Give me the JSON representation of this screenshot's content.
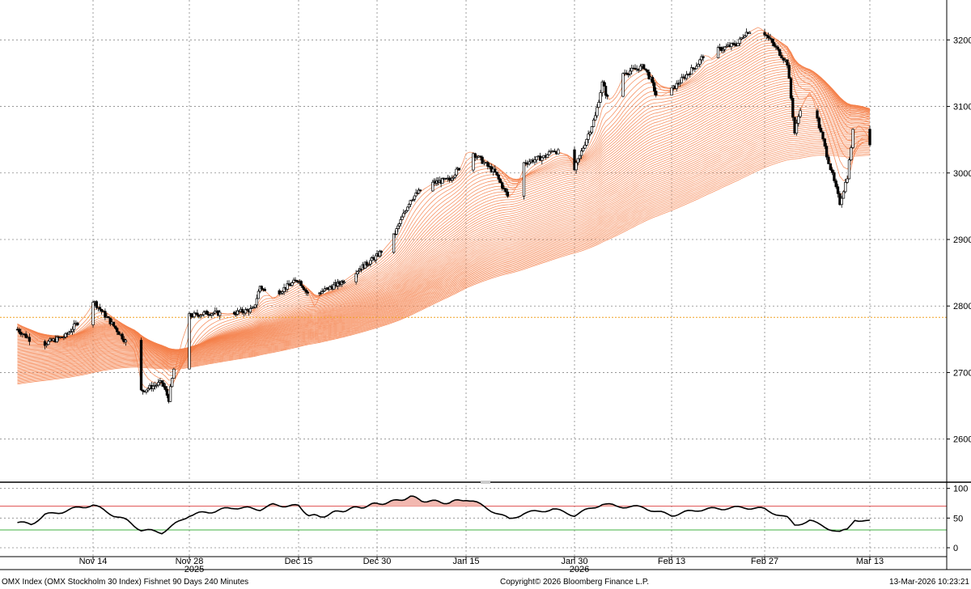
{
  "footer": {
    "left": "OMX Index (OMX Stockholm 30 Index) Fishnet 90 Days 240 Minutes",
    "center": "Copyright© 2026 Bloomberg Finance L.P.",
    "right": "13-Mar-2026 10:23:21"
  },
  "colors": {
    "candle": "#000000",
    "fishnet": "#f4804a",
    "reference_line": "#f0a020",
    "rsi_line": "#000000",
    "rsi_upper": "#e05050",
    "rsi_lower": "#40b040",
    "rsi_fill": "#f2b8b0",
    "grid": "#888888"
  },
  "chart_data": [
    {
      "type": "line",
      "subtype": "candlestick-with-fishnet-moving-averages",
      "title": "",
      "xlabel": "",
      "ylabel": "",
      "x_ticks": [
        "Nov 14",
        "Nov 28",
        "Dec 15",
        "Dec 30",
        "Jan 15",
        "Jan 30",
        "Feb 13",
        "Feb 27",
        "Mar 13"
      ],
      "year_labels": [
        {
          "label": "2025",
          "near": "Nov 28"
        },
        {
          "label": "2026",
          "near": "Jan 30"
        }
      ],
      "y_ticks": [
        2600,
        2700,
        2800,
        2900,
        3000,
        3100,
        3200
      ],
      "ylim": [
        2540,
        3260
      ],
      "reference_line": 2783,
      "price_path": [
        [
          "Nov 3",
          2765
        ],
        [
          "Nov 6",
          2740
        ],
        [
          "Nov 10",
          2755
        ],
        [
          "Nov 13",
          2790
        ],
        [
          "Nov 14",
          2808
        ],
        [
          "Nov 17",
          2770
        ],
        [
          "Nov 20",
          2730
        ],
        [
          "Nov 21",
          2672
        ],
        [
          "Nov 24",
          2685
        ],
        [
          "Nov 25",
          2660
        ],
        [
          "Nov 26",
          2720
        ],
        [
          "Nov 27",
          2760
        ],
        [
          "Nov 28",
          2785
        ],
        [
          "Dec 1",
          2790
        ],
        [
          "Dec 4",
          2788
        ],
        [
          "Dec 8",
          2795
        ],
        [
          "Dec 9",
          2830
        ],
        [
          "Dec 11",
          2808
        ],
        [
          "Dec 12",
          2822
        ],
        [
          "Dec 15",
          2840
        ],
        [
          "Dec 17",
          2815
        ],
        [
          "Dec 18",
          2795
        ],
        [
          "Dec 19",
          2820
        ],
        [
          "Dec 23",
          2835
        ],
        [
          "Dec 30",
          2875
        ],
        [
          "Jan 2",
          2905
        ],
        [
          "Jan 5",
          2960
        ],
        [
          "Jan 7",
          2975
        ],
        [
          "Jan 9",
          2985
        ],
        [
          "Jan 12",
          2990
        ],
        [
          "Jan 14",
          3010
        ],
        [
          "Jan 15",
          3035
        ],
        [
          "Jan 16",
          3030
        ],
        [
          "Jan 19",
          3000
        ],
        [
          "Jan 20",
          2980
        ],
        [
          "Jan 21",
          2960
        ],
        [
          "Jan 22",
          2985
        ],
        [
          "Jan 23",
          3015
        ],
        [
          "Jan 26",
          3025
        ],
        [
          "Jan 27",
          3035
        ],
        [
          "Jan 28",
          3030
        ],
        [
          "Jan 29",
          3025
        ],
        [
          "Jan 30",
          3005
        ],
        [
          "Feb 2",
          3085
        ],
        [
          "Feb 3",
          3135
        ],
        [
          "Feb 4",
          3105
        ],
        [
          "Feb 5",
          3125
        ],
        [
          "Feb 6",
          3150
        ],
        [
          "Feb 9",
          3160
        ],
        [
          "Feb 10",
          3140
        ],
        [
          "Feb 11",
          3110
        ],
        [
          "Feb 12",
          3120
        ],
        [
          "Feb 13",
          3125
        ],
        [
          "Feb 17",
          3165
        ],
        [
          "Feb 18",
          3180
        ],
        [
          "Feb 19",
          3170
        ],
        [
          "Feb 20",
          3185
        ],
        [
          "Feb 23",
          3195
        ],
        [
          "Feb 24",
          3210
        ],
        [
          "Feb 25",
          3215
        ],
        [
          "Feb 26",
          3220
        ],
        [
          "Feb 27",
          3210
        ],
        [
          "Mar 2",
          3165
        ],
        [
          "Mar 3",
          3060
        ],
        [
          "Mar 4",
          3110
        ],
        [
          "Mar 5",
          3125
        ],
        [
          "Mar 6",
          3080
        ],
        [
          "Mar 9",
          2955
        ],
        [
          "Mar 10",
          2995
        ],
        [
          "Mar 11",
          3085
        ],
        [
          "Mar 12",
          3065
        ],
        [
          "Mar 13",
          3045
        ]
      ]
    },
    {
      "type": "line",
      "title": "",
      "xlabel": "",
      "ylabel": "",
      "y_ticks": [
        0,
        50,
        100
      ],
      "ylim": [
        -15,
        105
      ],
      "upper_band": 70,
      "lower_band": 30,
      "values": [
        [
          "Nov 3",
          42
        ],
        [
          "Nov 5",
          40
        ],
        [
          "Nov 7",
          55
        ],
        [
          "Nov 10",
          62
        ],
        [
          "Nov 12",
          68
        ],
        [
          "Nov 14",
          72
        ],
        [
          "Nov 17",
          55
        ],
        [
          "Nov 19",
          45
        ],
        [
          "Nov 21",
          30
        ],
        [
          "Nov 24",
          26
        ],
        [
          "Nov 26",
          40
        ],
        [
          "Nov 28",
          55
        ],
        [
          "Dec 2",
          62
        ],
        [
          "Dec 5",
          68
        ],
        [
          "Dec 9",
          65
        ],
        [
          "Dec 11",
          72
        ],
        [
          "Dec 15",
          70
        ],
        [
          "Dec 17",
          55
        ],
        [
          "Dec 19",
          52
        ],
        [
          "Dec 23",
          62
        ],
        [
          "Dec 30",
          74
        ],
        [
          "Jan 2",
          78
        ],
        [
          "Jan 5",
          86
        ],
        [
          "Jan 7",
          80
        ],
        [
          "Jan 9",
          78
        ],
        [
          "Jan 12",
          76
        ],
        [
          "Jan 15",
          82
        ],
        [
          "Jan 16",
          78
        ],
        [
          "Jan 19",
          60
        ],
        [
          "Jan 21",
          48
        ],
        [
          "Jan 23",
          58
        ],
        [
          "Jan 27",
          65
        ],
        [
          "Jan 30",
          55
        ],
        [
          "Feb 3",
          74
        ],
        [
          "Feb 5",
          70
        ],
        [
          "Feb 9",
          68
        ],
        [
          "Feb 11",
          60
        ],
        [
          "Feb 13",
          55
        ],
        [
          "Feb 17",
          64
        ],
        [
          "Feb 20",
          66
        ],
        [
          "Feb 24",
          68
        ],
        [
          "Feb 27",
          65
        ],
        [
          "Mar 2",
          50
        ],
        [
          "Mar 3",
          38
        ],
        [
          "Mar 5",
          46
        ],
        [
          "Mar 6",
          40
        ],
        [
          "Mar 9",
          26
        ],
        [
          "Mar 10",
          30
        ],
        [
          "Mar 11",
          48
        ],
        [
          "Mar 12",
          46
        ],
        [
          "Mar 13",
          44
        ]
      ]
    }
  ]
}
